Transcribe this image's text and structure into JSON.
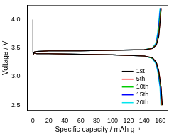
{
  "chart_data": {
    "type": "line",
    "x_label": "Specific capacity / mAh g⁻¹",
    "y_label": "Voltage / V",
    "xlim": [
      -7,
      170
    ],
    "xticks": [
      0,
      20,
      40,
      60,
      80,
      100,
      120,
      140,
      160
    ],
    "ylim": [
      2.4,
      4.25
    ],
    "yticks": [
      {
        "value": 2.5,
        "label": "2.5"
      },
      {
        "value": 3.0,
        "label": "3.0"
      },
      {
        "value": 3.5,
        "label": "3.5"
      },
      {
        "value": 4.0,
        "label": "4.0"
      }
    ],
    "grid": false,
    "legend": "lower right",
    "series": [
      {
        "name": "1st",
        "color": "#000000",
        "x": [
          0,
          2,
          5,
          20,
          60,
          100,
          140,
          150,
          155,
          158,
          160,
          161,
          null,
          0,
          0,
          2,
          5,
          20,
          60,
          100,
          140,
          150,
          155,
          158,
          161,
          162.5
        ],
        "values": [
          3.38,
          3.43,
          3.44,
          3.45,
          3.45,
          3.46,
          3.47,
          3.49,
          3.55,
          3.7,
          4.0,
          4.2,
          null,
          4.0,
          3.42,
          3.41,
          3.4,
          3.4,
          3.39,
          3.38,
          3.36,
          3.33,
          3.25,
          3.1,
          2.8,
          2.5
        ]
      },
      {
        "name": "5th",
        "color": "#ff0000",
        "x": [
          0,
          2,
          5,
          20,
          60,
          100,
          140,
          150,
          155,
          158,
          160,
          161,
          null,
          0,
          2,
          5,
          20,
          60,
          100,
          140,
          150,
          155,
          158,
          161,
          162
        ],
        "values": [
          3.38,
          3.43,
          3.44,
          3.45,
          3.45,
          3.46,
          3.47,
          3.49,
          3.56,
          3.72,
          4.02,
          4.2,
          null,
          3.42,
          3.41,
          3.4,
          3.4,
          3.39,
          3.38,
          3.36,
          3.33,
          3.25,
          3.1,
          2.8,
          2.5
        ]
      },
      {
        "name": "10th",
        "color": "#00cc00",
        "x": [
          0,
          2,
          5,
          20,
          60,
          100,
          140,
          150,
          155,
          157.5,
          159.5,
          160.5,
          null,
          0,
          2,
          5,
          20,
          60,
          100,
          140,
          150,
          155,
          157.5,
          160.5,
          161.5
        ],
        "values": [
          3.38,
          3.43,
          3.44,
          3.45,
          3.45,
          3.46,
          3.47,
          3.5,
          3.57,
          3.74,
          4.03,
          4.2,
          null,
          3.42,
          3.41,
          3.4,
          3.4,
          3.39,
          3.38,
          3.36,
          3.32,
          3.24,
          3.1,
          2.8,
          2.5
        ]
      },
      {
        "name": "15th",
        "color": "#0000ff",
        "x": [
          0,
          2,
          5,
          20,
          60,
          100,
          140,
          150,
          154.5,
          157,
          159,
          160,
          null,
          0,
          2,
          5,
          20,
          60,
          100,
          140,
          150,
          154.5,
          157,
          160,
          161
        ],
        "values": [
          3.38,
          3.43,
          3.44,
          3.45,
          3.45,
          3.46,
          3.47,
          3.5,
          3.57,
          3.75,
          4.04,
          4.2,
          null,
          3.42,
          3.41,
          3.4,
          3.4,
          3.39,
          3.38,
          3.36,
          3.32,
          3.24,
          3.1,
          2.8,
          2.5
        ]
      },
      {
        "name": "20th",
        "color": "#00e5ee",
        "x": [
          0,
          2,
          5,
          20,
          60,
          100,
          140,
          150,
          154,
          156.5,
          158.5,
          159.5,
          null,
          0,
          2,
          5,
          20,
          60,
          100,
          140,
          150,
          154,
          156.5,
          159.5,
          160.5
        ],
        "values": [
          3.38,
          3.43,
          3.44,
          3.45,
          3.45,
          3.46,
          3.47,
          3.5,
          3.58,
          3.76,
          4.05,
          4.2,
          null,
          3.42,
          3.41,
          3.4,
          3.4,
          3.39,
          3.38,
          3.36,
          3.32,
          3.23,
          3.1,
          2.8,
          2.5
        ]
      }
    ]
  }
}
